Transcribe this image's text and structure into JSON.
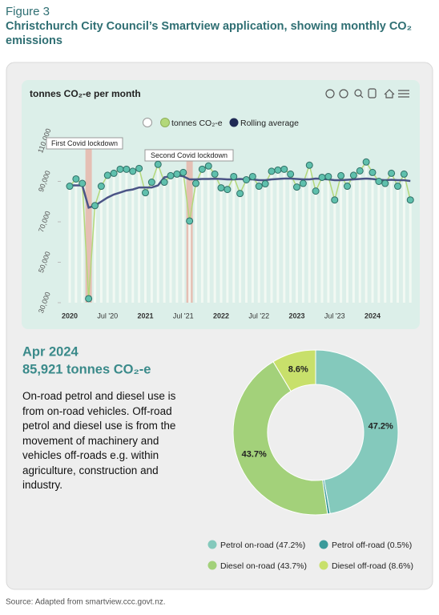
{
  "header": {
    "figure": "Figure 3",
    "caption": "Christchurch City Council’s Smartview application, showing monthly CO₂ emissions"
  },
  "summary": {
    "month": "Apr 2024",
    "total": "85,921 tonnes CO₂-e",
    "description": "On-road petrol and diesel use is from on-road vehicles. Off-road petrol and diesel use is from the movement of machinery and vehicles off-roads e.g. within agriculture, construction and industry."
  },
  "source": "Source: Adapted from smartview.ccc.govt.nz.",
  "chart_data": [
    {
      "type": "line",
      "title": "tonnes CO₂-e per month",
      "categories": [
        "2020",
        null,
        null,
        null,
        null,
        null,
        "Jul '20",
        null,
        null,
        null,
        null,
        null,
        "2021",
        null,
        null,
        null,
        null,
        null,
        "Jul '21",
        null,
        null,
        null,
        null,
        null,
        "2022",
        null,
        null,
        null,
        null,
        null,
        "Jul '22",
        null,
        null,
        null,
        null,
        null,
        "2023",
        null,
        null,
        null,
        null,
        null,
        "Jul '23",
        null,
        null,
        null,
        null,
        null,
        "2024",
        null,
        null,
        null,
        null,
        null,
        null
      ],
      "series": [
        {
          "name": "tonnes CO₂-e",
          "color": "#5fc0ad",
          "values": [
            87600,
            91200,
            89000,
            32000,
            78000,
            87600,
            93000,
            94000,
            96000,
            96000,
            95000,
            96400,
            84400,
            89600,
            98400,
            89600,
            92800,
            93600,
            94400,
            70400,
            89000,
            96000,
            97600,
            93600,
            86800,
            86000,
            92400,
            84000,
            90800,
            92400,
            87600,
            88800,
            95000,
            95600,
            96000,
            93600,
            87200,
            89000,
            98000,
            85200,
            92000,
            92400,
            80800,
            92800,
            87600,
            93000,
            95200,
            99600,
            94400,
            90000,
            89000,
            94000,
            87600,
            93600,
            80800
          ]
        },
        {
          "name": "Rolling average",
          "color": "#4b5486",
          "values": [
            88000,
            88000,
            88000,
            77000,
            78000,
            80000,
            82000,
            83500,
            84500,
            85500,
            86000,
            87000,
            87000,
            87000,
            88000,
            92000,
            92500,
            93000,
            92500,
            91000,
            91000,
            91200,
            91200,
            91300,
            91200,
            91000,
            91000,
            91200,
            91000,
            91000,
            90600,
            90600,
            91000,
            91200,
            91400,
            91400,
            91200,
            91000,
            91000,
            91400,
            91200,
            91000,
            90600,
            90600,
            90800,
            91000,
            91200,
            91400,
            91200,
            90800,
            90600,
            90800,
            90600,
            90600,
            90200
          ]
        }
      ],
      "annotations": [
        {
          "text": "First Covid lockdown"
        },
        {
          "text": "Second Covid lockdown"
        }
      ],
      "ylim": [
        30000,
        110000
      ],
      "yticks": [
        {
          "value": 30000,
          "label": "30,000"
        },
        {
          "value": 50000,
          "label": "50,000"
        },
        {
          "value": 70000,
          "label": "70,000"
        },
        {
          "value": 90000,
          "label": "90,000"
        },
        {
          "value": 110000,
          "label": "110,000"
        }
      ],
      "grid": false
    },
    {
      "type": "pie",
      "categories": [
        "Petrol on-road (47.2%)",
        "Petrol off-road (0.5%)",
        "Diesel on-road (43.7%)",
        "Diesel off-road (8.6%)"
      ],
      "values": [
        47.2,
        0.5,
        43.7,
        8.6
      ],
      "value_labels": [
        "47.2%",
        null,
        "43.7%",
        "8.6%"
      ],
      "colors": [
        "#84c9bc",
        "#3a9a9a",
        "#a3d17a",
        "#c8e06b"
      ]
    }
  ]
}
